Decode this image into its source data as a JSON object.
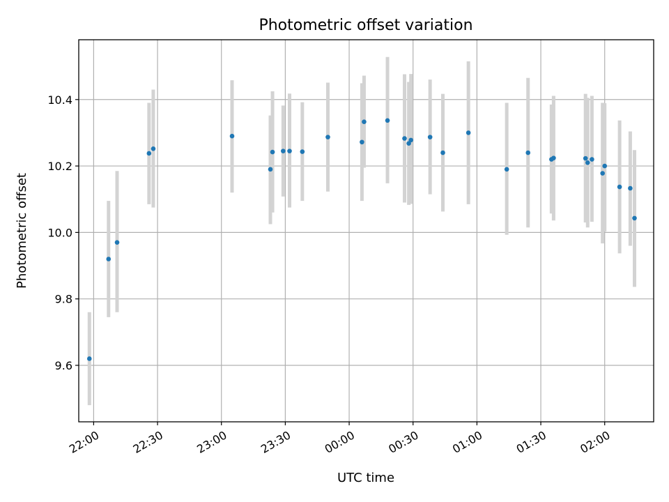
{
  "chart_data": {
    "type": "scatter",
    "title": "Photometric offset variation",
    "xlabel": "UTC time",
    "ylabel": "Photometric offset",
    "x_axis": {
      "kind": "time",
      "range": [
        "21:53",
        "02:23"
      ],
      "ticks": [
        "22:00",
        "22:30",
        "23:00",
        "23:30",
        "00:00",
        "00:30",
        "01:00",
        "01:30",
        "02:00"
      ]
    },
    "y_axis": {
      "range": [
        9.43,
        10.58
      ],
      "ticks": [
        9.6,
        9.8,
        10.0,
        10.2,
        10.4
      ],
      "tick_labels": [
        "9.6",
        "9.8",
        "10.0",
        "10.2",
        "10.4"
      ]
    },
    "grid": true,
    "marker_color": "#1f77b4",
    "errorbar_color": "#d3d3d3",
    "points": [
      {
        "t": "21:58",
        "y": 9.62,
        "lo": 9.48,
        "hi": 9.76
      },
      {
        "t": "22:07",
        "y": 9.92,
        "lo": 9.745,
        "hi": 10.095
      },
      {
        "t": "22:11",
        "y": 9.97,
        "lo": 9.76,
        "hi": 10.185
      },
      {
        "t": "22:26",
        "y": 10.238,
        "lo": 10.085,
        "hi": 10.39
      },
      {
        "t": "22:28",
        "y": 10.252,
        "lo": 10.075,
        "hi": 10.43
      },
      {
        "t": "23:05",
        "y": 10.29,
        "lo": 10.12,
        "hi": 10.458
      },
      {
        "t": "23:23",
        "y": 10.19,
        "lo": 10.025,
        "hi": 10.352
      },
      {
        "t": "23:24",
        "y": 10.242,
        "lo": 10.06,
        "hi": 10.425
      },
      {
        "t": "23:29",
        "y": 10.245,
        "lo": 10.108,
        "hi": 10.382
      },
      {
        "t": "23:32",
        "y": 10.245,
        "lo": 10.075,
        "hi": 10.418
      },
      {
        "t": "23:38",
        "y": 10.243,
        "lo": 10.095,
        "hi": 10.392
      },
      {
        "t": "23:50",
        "y": 10.287,
        "lo": 10.123,
        "hi": 10.451
      },
      {
        "t": "00:06",
        "y": 10.272,
        "lo": 10.095,
        "hi": 10.449
      },
      {
        "t": "00:07",
        "y": 10.333,
        "lo": 10.195,
        "hi": 10.472
      },
      {
        "t": "00:18",
        "y": 10.337,
        "lo": 10.148,
        "hi": 10.528
      },
      {
        "t": "00:26",
        "y": 10.283,
        "lo": 10.09,
        "hi": 10.476
      },
      {
        "t": "00:28",
        "y": 10.268,
        "lo": 10.083,
        "hi": 10.453
      },
      {
        "t": "00:29",
        "y": 10.278,
        "lo": 10.086,
        "hi": 10.477
      },
      {
        "t": "00:38",
        "y": 10.287,
        "lo": 10.115,
        "hi": 10.46
      },
      {
        "t": "00:44",
        "y": 10.24,
        "lo": 10.063,
        "hi": 10.417
      },
      {
        "t": "00:56",
        "y": 10.3,
        "lo": 10.085,
        "hi": 10.515
      },
      {
        "t": "01:14",
        "y": 10.19,
        "lo": 9.993,
        "hi": 10.39
      },
      {
        "t": "01:24",
        "y": 10.24,
        "lo": 10.015,
        "hi": 10.465
      },
      {
        "t": "01:35",
        "y": 10.22,
        "lo": 10.057,
        "hi": 10.385
      },
      {
        "t": "01:36",
        "y": 10.224,
        "lo": 10.036,
        "hi": 10.411
      },
      {
        "t": "01:51",
        "y": 10.223,
        "lo": 10.03,
        "hi": 10.417
      },
      {
        "t": "01:52",
        "y": 10.21,
        "lo": 10.015,
        "hi": 10.405
      },
      {
        "t": "01:54",
        "y": 10.22,
        "lo": 10.032,
        "hi": 10.411
      },
      {
        "t": "01:59",
        "y": 10.178,
        "lo": 9.967,
        "hi": 10.39
      },
      {
        "t": "02:00",
        "y": 10.2,
        "lo": 10.003,
        "hi": 10.389
      },
      {
        "t": "02:07",
        "y": 10.137,
        "lo": 9.937,
        "hi": 10.337
      },
      {
        "t": "02:12",
        "y": 10.133,
        "lo": 9.96,
        "hi": 10.304
      },
      {
        "t": "02:14",
        "y": 10.043,
        "lo": 9.836,
        "hi": 10.248
      }
    ]
  }
}
